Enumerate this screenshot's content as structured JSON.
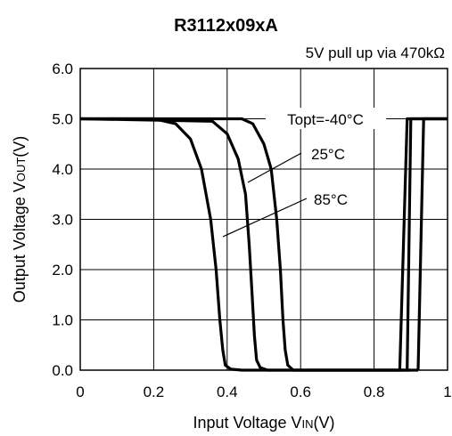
{
  "chart_data": {
    "type": "line",
    "title": "R3112x09xA",
    "subtitle": "5V pull up via 470kΩ",
    "xlabel": {
      "main": "Input Voltage V",
      "sub": "IN",
      "unit": "(V)"
    },
    "ylabel": {
      "main": "Output Voltage V",
      "sub": "OUT",
      "unit": "(V)"
    },
    "xlim": [
      0,
      1.0
    ],
    "ylim": [
      0,
      6.0
    ],
    "x_ticks": [
      0,
      0.2,
      0.4,
      0.6,
      0.8,
      1.0
    ],
    "x_tick_labels": [
      "0",
      "0.2",
      "0.4",
      "0.6",
      "0.8",
      "1"
    ],
    "y_ticks": [
      0,
      1,
      2,
      3,
      4,
      5,
      6
    ],
    "y_tick_labels": [
      "0.0",
      "1.0",
      "2.0",
      "3.0",
      "4.0",
      "5.0",
      "6.0"
    ],
    "grid": true,
    "annotations": [
      "Topt=-40°C",
      "25°C",
      "85°C"
    ],
    "series": [
      {
        "name": "Topt=-40°C",
        "falling": [
          [
            0,
            5.0
          ],
          [
            0.44,
            5.0
          ],
          [
            0.47,
            4.9
          ],
          [
            0.5,
            4.5
          ],
          [
            0.52,
            4.0
          ],
          [
            0.535,
            3.0
          ],
          [
            0.545,
            2.0
          ],
          [
            0.552,
            1.0
          ],
          [
            0.558,
            0.4
          ],
          [
            0.565,
            0.1
          ],
          [
            0.58,
            0.0
          ],
          [
            0.88,
            0.0
          ]
        ],
        "rising": [
          [
            0.87,
            0.0
          ],
          [
            0.89,
            5.0
          ],
          [
            1.0,
            5.0
          ]
        ]
      },
      {
        "name": "25°C",
        "falling": [
          [
            0,
            5.0
          ],
          [
            0.36,
            4.95
          ],
          [
            0.4,
            4.7
          ],
          [
            0.43,
            4.2
          ],
          [
            0.45,
            3.5
          ],
          [
            0.46,
            2.5
          ],
          [
            0.468,
            1.5
          ],
          [
            0.474,
            0.7
          ],
          [
            0.48,
            0.2
          ],
          [
            0.49,
            0.05
          ],
          [
            0.51,
            0.0
          ],
          [
            0.9,
            0.0
          ]
        ],
        "rising": [
          [
            0.89,
            0.0
          ],
          [
            0.9,
            5.0
          ],
          [
            1.0,
            5.0
          ]
        ]
      },
      {
        "name": "85°C",
        "falling": [
          [
            0,
            5.0
          ],
          [
            0.2,
            5.0
          ],
          [
            0.26,
            4.9
          ],
          [
            0.3,
            4.6
          ],
          [
            0.33,
            4.0
          ],
          [
            0.355,
            3.0
          ],
          [
            0.37,
            2.0
          ],
          [
            0.38,
            1.0
          ],
          [
            0.388,
            0.4
          ],
          [
            0.395,
            0.1
          ],
          [
            0.41,
            0.02
          ],
          [
            0.44,
            0.0
          ],
          [
            0.92,
            0.0
          ]
        ],
        "rising": [
          [
            0.92,
            0.0
          ],
          [
            0.935,
            5.0
          ],
          [
            1.0,
            5.0
          ]
        ]
      }
    ]
  }
}
